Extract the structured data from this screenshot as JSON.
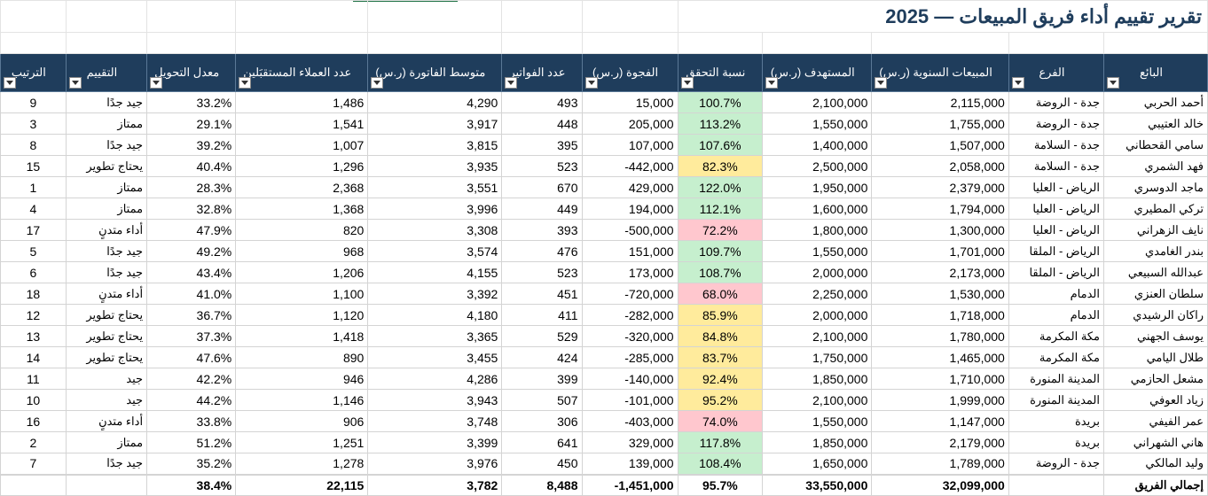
{
  "sheet": {
    "title": "تقرير تقييم أداء فريق المبيعات — 2025",
    "headers": [
      "البائع",
      "الفرع",
      "المبيعات السنوية (ر.س)",
      "المستهدف (ر.س)",
      "نسبة التحقق",
      "الفجوة (ر.س)",
      "عدد الفواتير",
      "متوسط الفاتورة (ر.س)",
      "عدد العملاء المستقبَلين",
      "معدل التحويل",
      "التقييم",
      "الترتيب"
    ],
    "rows": [
      [
        "أحمد الحربي",
        "جدة - الروضة",
        "2,115,000",
        "2,100,000",
        "100.7%",
        "15,000",
        "493",
        "4,290",
        "1,486",
        "33.2%",
        "جيد جدًا",
        "9"
      ],
      [
        "خالد العتيبي",
        "جدة - الروضة",
        "1,755,000",
        "1,550,000",
        "113.2%",
        "205,000",
        "448",
        "3,917",
        "1,541",
        "29.1%",
        "ممتاز",
        "3"
      ],
      [
        "سامي القحطاني",
        "جدة - السلامة",
        "1,507,000",
        "1,400,000",
        "107.6%",
        "107,000",
        "395",
        "3,815",
        "1,007",
        "39.2%",
        "جيد جدًا",
        "8"
      ],
      [
        "فهد الشمري",
        "جدة - السلامة",
        "2,058,000",
        "2,500,000",
        "82.3%",
        "-442,000",
        "523",
        "3,935",
        "1,296",
        "40.4%",
        "يحتاج تطوير",
        "15"
      ],
      [
        "ماجد الدوسري",
        "الرياض - العليا",
        "2,379,000",
        "1,950,000",
        "122.0%",
        "429,000",
        "670",
        "3,551",
        "2,368",
        "28.3%",
        "ممتاز",
        "1"
      ],
      [
        "تركي المطيري",
        "الرياض - العليا",
        "1,794,000",
        "1,600,000",
        "112.1%",
        "194,000",
        "449",
        "3,996",
        "1,368",
        "32.8%",
        "ممتاز",
        "4"
      ],
      [
        "نايف الزهراني",
        "الرياض - العليا",
        "1,300,000",
        "1,800,000",
        "72.2%",
        "-500,000",
        "393",
        "3,308",
        "820",
        "47.9%",
        "أداء متدنٍ",
        "17"
      ],
      [
        "بندر الغامدي",
        "الرياض - الملقا",
        "1,701,000",
        "1,550,000",
        "109.7%",
        "151,000",
        "476",
        "3,574",
        "968",
        "49.2%",
        "جيد جدًا",
        "5"
      ],
      [
        "عبدالله السبيعي",
        "الرياض - الملقا",
        "2,173,000",
        "2,000,000",
        "108.7%",
        "173,000",
        "523",
        "4,155",
        "1,206",
        "43.4%",
        "جيد جدًا",
        "6"
      ],
      [
        "سلطان العنزي",
        "الدمام",
        "1,530,000",
        "2,250,000",
        "68.0%",
        "-720,000",
        "451",
        "3,392",
        "1,100",
        "41.0%",
        "أداء متدنٍ",
        "18"
      ],
      [
        "راكان الرشيدي",
        "الدمام",
        "1,718,000",
        "2,000,000",
        "85.9%",
        "-282,000",
        "411",
        "4,180",
        "1,120",
        "36.7%",
        "يحتاج تطوير",
        "12"
      ],
      [
        "يوسف الجهني",
        "مكة المكرمة",
        "1,780,000",
        "2,100,000",
        "84.8%",
        "-320,000",
        "529",
        "3,365",
        "1,418",
        "37.3%",
        "يحتاج تطوير",
        "13"
      ],
      [
        "طلال اليامي",
        "مكة المكرمة",
        "1,465,000",
        "1,750,000",
        "83.7%",
        "-285,000",
        "424",
        "3,455",
        "890",
        "47.6%",
        "يحتاج تطوير",
        "14"
      ],
      [
        "مشعل الحازمي",
        "المدينة المنورة",
        "1,710,000",
        "1,850,000",
        "92.4%",
        "-140,000",
        "399",
        "4,286",
        "946",
        "42.2%",
        "جيد",
        "11"
      ],
      [
        "زياد العوفي",
        "المدينة المنورة",
        "1,999,000",
        "2,100,000",
        "95.2%",
        "-101,000",
        "507",
        "3,943",
        "1,146",
        "44.2%",
        "جيد",
        "10"
      ],
      [
        "عمر الفيفي",
        "بريدة",
        "1,147,000",
        "1,550,000",
        "74.0%",
        "-403,000",
        "306",
        "3,748",
        "906",
        "33.8%",
        "أداء متدنٍ",
        "16"
      ],
      [
        "هاني الشهراني",
        "بريدة",
        "2,179,000",
        "1,850,000",
        "117.8%",
        "329,000",
        "641",
        "3,399",
        "1,251",
        "51.2%",
        "ممتاز",
        "2"
      ],
      [
        "وليد المالكي",
        "جدة - الروضة",
        "1,789,000",
        "1,650,000",
        "108.4%",
        "139,000",
        "450",
        "3,976",
        "1,278",
        "35.2%",
        "جيد جدًا",
        "7"
      ]
    ],
    "ratio_status": [
      "good",
      "good",
      "good",
      "mid",
      "good",
      "good",
      "bad",
      "good",
      "good",
      "bad",
      "mid",
      "mid",
      "mid",
      "mid",
      "mid",
      "bad",
      "good",
      "good"
    ],
    "total": {
      "label": "إجمالي الفريق",
      "sales": "32,099,000",
      "target": "33,550,000",
      "ratio": "95.7%",
      "gap": "-1,451,000",
      "invoices": "8,488",
      "avg_invoice": "3,782",
      "customers": "22,115",
      "conversion": "38.4%"
    },
    "status_colors": {
      "good": "#c6efce",
      "mid": "#ffeb9c",
      "bad": "#ffc7ce",
      "header": "#1f3d5c"
    },
    "icons": {
      "filter": "filter-dropdown-icon"
    }
  }
}
